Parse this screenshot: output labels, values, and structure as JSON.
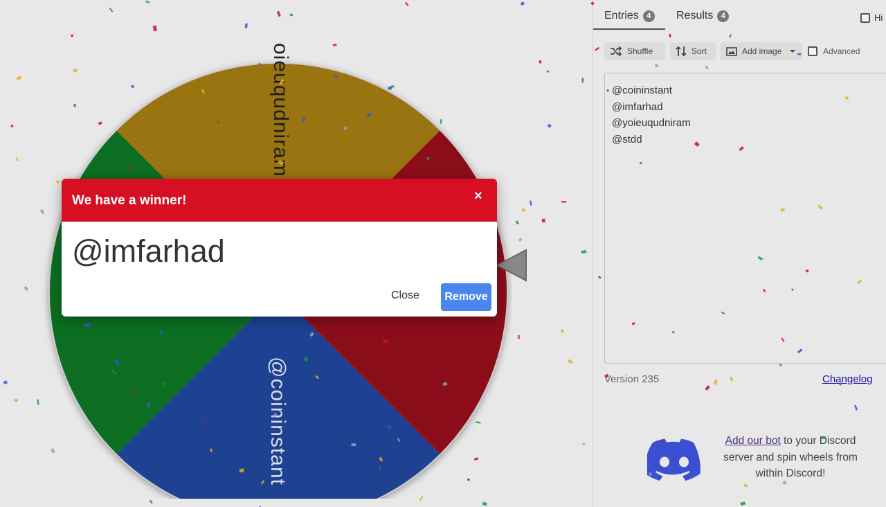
{
  "wheel": {
    "segments": [
      {
        "label": "@yoieuqudniram",
        "color": "#c9960c"
      },
      {
        "label": "@stdd",
        "color": "#b01020"
      },
      {
        "label": "@coininstant",
        "color": "#2452b5"
      },
      {
        "label": "@imfarhad",
        "color": "#0e8a2a"
      }
    ],
    "visible_labels": {
      "top": "oieuqudniram",
      "bottom": "@coininstant"
    }
  },
  "tabs": {
    "entries_label": "Entries",
    "entries_count": "4",
    "results_label": "Results",
    "results_count": "4",
    "hide_label": "Hi"
  },
  "toolbar": {
    "shuffle_label": "Shuffle",
    "sort_label": "Sort",
    "add_image_label": "Add image",
    "advanced_label": "Advanced"
  },
  "entries": [
    "@coininstant",
    "@imfarhad",
    "@yoieuqudniram",
    "@stdd"
  ],
  "footer": {
    "version": "Version 235",
    "changelog": "Changelog"
  },
  "discord": {
    "link_text": "Add our bot",
    "rest_text_1": " to your Discord",
    "rest_text_2": "server and spin wheels from",
    "rest_text_3": "within Discord!"
  },
  "dialog": {
    "title": "We have a winner!",
    "close_x": "×",
    "winner": "@imfarhad",
    "close_label": "Close",
    "remove_label": "Remove"
  },
  "colors": {
    "dialog_header": "#d70f22",
    "remove_button": "#4a86ee"
  }
}
